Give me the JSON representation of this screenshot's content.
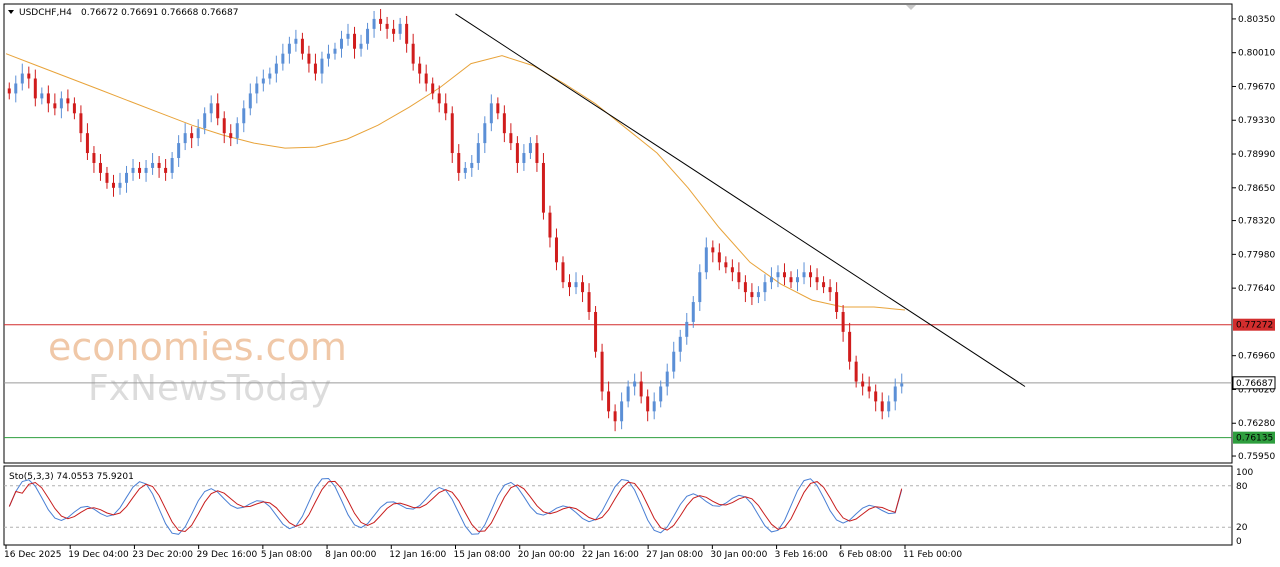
{
  "header": {
    "symbol": "USDCHF,H4",
    "ohlc": "0.76672 0.76691 0.76668 0.76687"
  },
  "watermark": {
    "line1": "economies.com",
    "line2": "FxNewsToday"
  },
  "price_axis": {
    "ticks": [
      "0.80350",
      "0.80010",
      "0.79670",
      "0.79330",
      "0.78990",
      "0.78650",
      "0.78320",
      "0.77980",
      "0.77640",
      "0.76960",
      "0.76620",
      "0.76280",
      "0.75950"
    ]
  },
  "levels": [
    {
      "name": "resistance",
      "label": "0.77272",
      "price": 0.77272,
      "color": "#d22d2d"
    },
    {
      "name": "current",
      "label": "0.76687",
      "price": 0.76687,
      "color": "#9a9a9a"
    },
    {
      "name": "support",
      "label": "0.76135",
      "price": 0.76135,
      "color": "#2e9e3e"
    }
  ],
  "time_axis": {
    "labels": [
      "16 Dec 2025",
      "19 Dec 04:00",
      "23 Dec 20:00",
      "29 Dec 16:00",
      "5 Jan 08:00",
      "8 Jan 00:00",
      "12 Jan 16:00",
      "15 Jan 08:00",
      "20 Jan 00:00",
      "22 Jan 16:00",
      "27 Jan 08:00",
      "30 Jan 00:00",
      "3 Feb 16:00",
      "6 Feb 08:00",
      "11 Feb 00:00"
    ]
  },
  "stochastic": {
    "label": "Sto(5,3,3) 74.0553 75.9201",
    "ticks": [
      "100",
      "80",
      "20",
      "0"
    ],
    "main_color": "#4a7fd4",
    "signal_color": "#c81e1e"
  },
  "colors": {
    "bull": "#5b8fd6",
    "bear": "#d01c1c",
    "ma": "#e8a33a",
    "trendline": "#000000"
  },
  "chart_data": {
    "type": "candlestick",
    "title": "USDCHF,H4",
    "ylim": [
      0.759,
      0.8048
    ],
    "x_labels": [
      "16 Dec 2025",
      "19 Dec 04:00",
      "23 Dec 20:00",
      "29 Dec 16:00",
      "5 Jan 08:00",
      "8 Jan 00:00",
      "12 Jan 16:00",
      "15 Jan 08:00",
      "20 Jan 00:00",
      "22 Jan 16:00",
      "27 Jan 08:00",
      "30 Jan 00:00",
      "3 Feb 16:00",
      "6 Feb 08:00",
      "11 Feb 00:00"
    ],
    "close_path": [
      0.796,
      0.797,
      0.798,
      0.7975,
      0.7955,
      0.796,
      0.795,
      0.7945,
      0.7955,
      0.795,
      0.794,
      0.792,
      0.79,
      0.789,
      0.788,
      0.787,
      0.7865,
      0.787,
      0.788,
      0.7885,
      0.788,
      0.7885,
      0.789,
      0.7885,
      0.788,
      0.7895,
      0.791,
      0.792,
      0.7915,
      0.7925,
      0.794,
      0.795,
      0.7935,
      0.792,
      0.7915,
      0.793,
      0.7945,
      0.796,
      0.797,
      0.7975,
      0.798,
      0.799,
      0.8,
      0.801,
      0.8015,
      0.8,
      0.799,
      0.798,
      0.7995,
      0.8,
      0.8005,
      0.8015,
      0.802,
      0.8005,
      0.801,
      0.8025,
      0.8035,
      0.803,
      0.8025,
      0.802,
      0.803,
      0.801,
      0.799,
      0.798,
      0.797,
      0.796,
      0.795,
      0.794,
      0.79,
      0.788,
      0.7885,
      0.789,
      0.791,
      0.793,
      0.795,
      0.794,
      0.792,
      0.791,
      0.789,
      0.79,
      0.791,
      0.789,
      0.784,
      0.7815,
      0.779,
      0.777,
      0.7765,
      0.777,
      0.776,
      0.774,
      0.77,
      0.766,
      0.764,
      0.763,
      0.765,
      0.7665,
      0.767,
      0.7655,
      0.764,
      0.765,
      0.7665,
      0.768,
      0.77,
      0.7715,
      0.773,
      0.775,
      0.778,
      0.7805,
      0.78,
      0.779,
      0.7785,
      0.778,
      0.777,
      0.776,
      0.7755,
      0.776,
      0.777,
      0.7775,
      0.778,
      0.7775,
      0.777,
      0.7775,
      0.778,
      0.7775,
      0.777,
      0.7765,
      0.776,
      0.774,
      0.772,
      0.769,
      0.767,
      0.7665,
      0.766,
      0.765,
      0.764,
      0.765,
      0.7665,
      0.7668
    ],
    "moving_average": [
      0.8,
      0.7988,
      0.7976,
      0.7964,
      0.7952,
      0.794,
      0.7928,
      0.7918,
      0.791,
      0.7905,
      0.7906,
      0.7914,
      0.7928,
      0.7946,
      0.7966,
      0.799,
      0.7998,
      0.7988,
      0.797,
      0.795,
      0.7925,
      0.79,
      0.7865,
      0.7825,
      0.779,
      0.7768,
      0.7752,
      0.7745,
      0.7745,
      0.7742
    ],
    "trendline": {
      "from": {
        "x_label": "15 Jan 08:00",
        "price": 0.804
      },
      "to": {
        "x_label": "11 Feb 00:00",
        "price": 0.7665
      }
    },
    "horizontal_levels": [
      0.77272,
      0.76687,
      0.76135
    ],
    "stochastic": {
      "period": "5,3,3",
      "main": 74.0553,
      "signal": 75.9201,
      "levels": [
        80,
        20
      ],
      "ylim": [
        0,
        100
      ]
    }
  }
}
